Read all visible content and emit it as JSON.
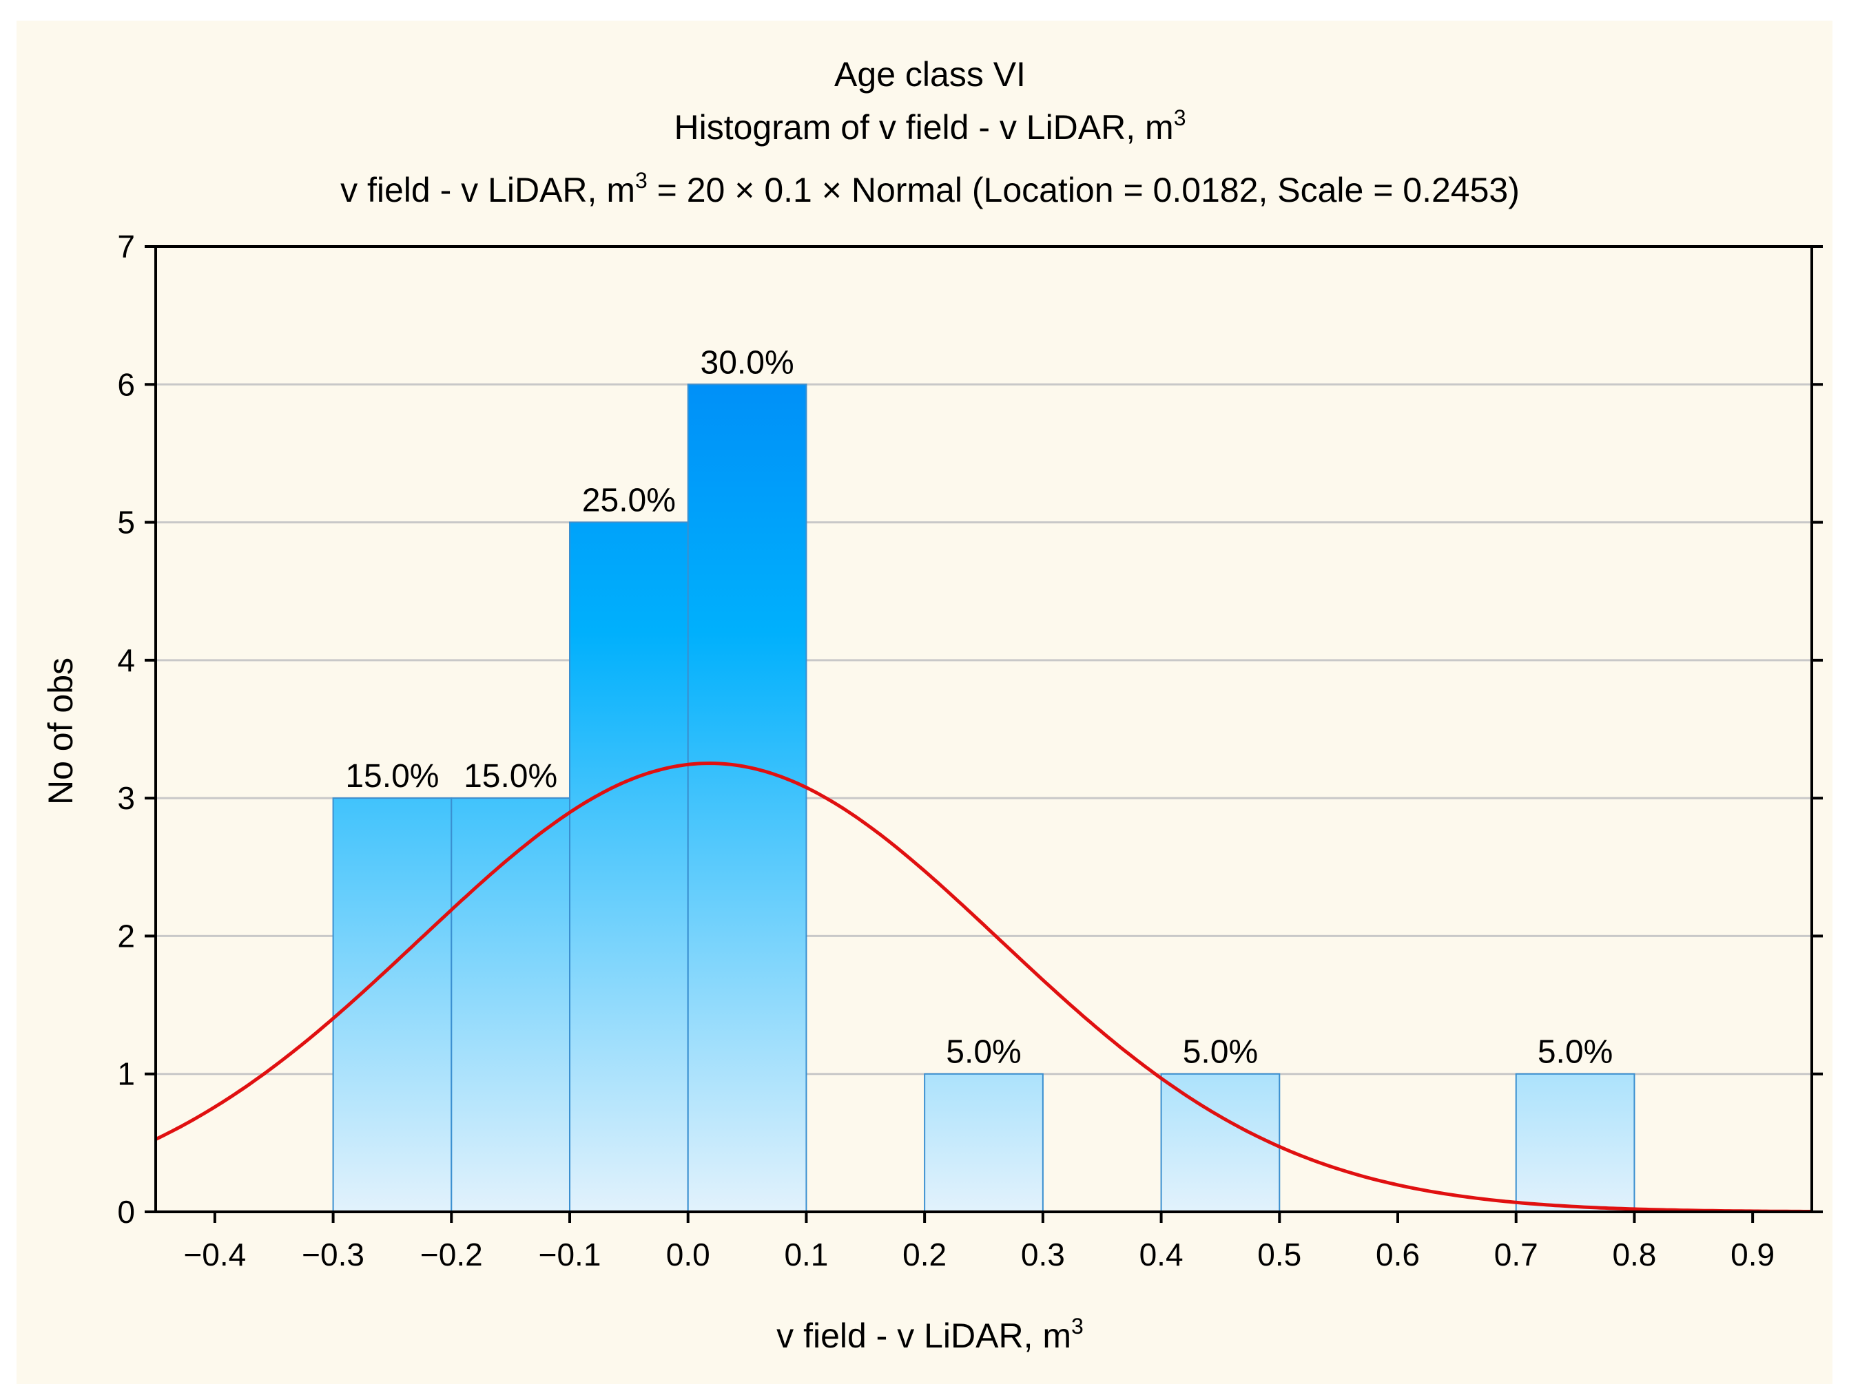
{
  "chart_data": {
    "type": "bar",
    "title": "Age class VI",
    "subtitle": "Histogram of v field - v LiDAR, m",
    "subtitle_sup": "3",
    "fit_prefix": "v field - v LiDAR, m",
    "fit_sup": "3",
    "fit_suffix": " = 20 × 0.1 × Normal (Location = 0.0182, Scale = 0.2453)",
    "xlabel": "v field - v LiDAR, m",
    "xlabel_sup": "3",
    "ylabel": "No of obs",
    "xlim": [
      -0.45,
      0.95
    ],
    "ylim": [
      0,
      7
    ],
    "xticks": [
      {
        "value": -0.4,
        "label": "−0.4"
      },
      {
        "value": -0.3,
        "label": "−0.3"
      },
      {
        "value": -0.2,
        "label": "−0.2"
      },
      {
        "value": -0.1,
        "label": "−0.1"
      },
      {
        "value": 0.0,
        "label": "0.0"
      },
      {
        "value": 0.1,
        "label": "0.1"
      },
      {
        "value": 0.2,
        "label": "0.2"
      },
      {
        "value": 0.3,
        "label": "0.3"
      },
      {
        "value": 0.4,
        "label": "0.4"
      },
      {
        "value": 0.5,
        "label": "0.5"
      },
      {
        "value": 0.6,
        "label": "0.6"
      },
      {
        "value": 0.7,
        "label": "0.7"
      },
      {
        "value": 0.8,
        "label": "0.8"
      },
      {
        "value": 0.9,
        "label": "0.9"
      }
    ],
    "yticks": [
      {
        "value": 0,
        "label": "0"
      },
      {
        "value": 1,
        "label": "1"
      },
      {
        "value": 2,
        "label": "2"
      },
      {
        "value": 3,
        "label": "3"
      },
      {
        "value": 4,
        "label": "4"
      },
      {
        "value": 5,
        "label": "5"
      },
      {
        "value": 6,
        "label": "6"
      },
      {
        "value": 7,
        "label": "7"
      }
    ],
    "bins": [
      {
        "start": -0.3,
        "end": -0.2,
        "count": 3,
        "label": "15.0%"
      },
      {
        "start": -0.2,
        "end": -0.1,
        "count": 3,
        "label": "15.0%"
      },
      {
        "start": -0.1,
        "end": 0.0,
        "count": 5,
        "label": "25.0%"
      },
      {
        "start": 0.0,
        "end": 0.1,
        "count": 6,
        "label": "30.0%"
      },
      {
        "start": 0.2,
        "end": 0.3,
        "count": 1,
        "label": "5.0%"
      },
      {
        "start": 0.4,
        "end": 0.5,
        "count": 1,
        "label": "5.0%"
      },
      {
        "start": 0.7,
        "end": 0.8,
        "count": 1,
        "label": "5.0%"
      }
    ],
    "fit_curve": {
      "distribution": "normal",
      "n": 20,
      "bin_width": 0.1,
      "location": 0.0182,
      "scale": 0.2453,
      "color": "#e01010"
    },
    "grid": true,
    "colors": {
      "bar_top": "#0090f8",
      "bar_bottom": "#e2f2fc",
      "bar_edge": "#3a8fd0",
      "grid": "#c8c8c8",
      "background": "#fdf9ed"
    }
  }
}
